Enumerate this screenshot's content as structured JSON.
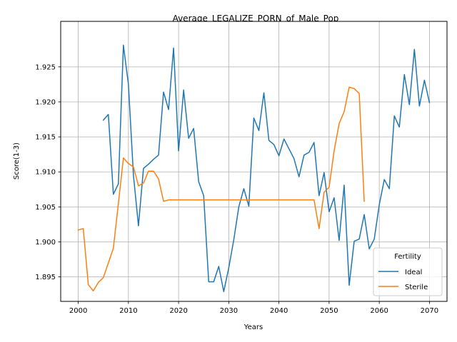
{
  "chart_data": {
    "type": "line",
    "title": "Average_LEGALIZE_PORN_of_Male_Pop",
    "xlabel": "Years",
    "ylabel": "Score(1-3)",
    "xlim": [
      1996.5,
      2073.5
    ],
    "ylim": [
      1.8915,
      1.9315
    ],
    "xticks": [
      2000,
      2010,
      2020,
      2030,
      2040,
      2050,
      2060,
      2070
    ],
    "xtick_labels": [
      "2000",
      "2010",
      "2020",
      "2030",
      "2040",
      "2050",
      "2060",
      "2070"
    ],
    "yticks": [
      1.895,
      1.9,
      1.905,
      1.91,
      1.915,
      1.92,
      1.925
    ],
    "ytick_labels": [
      "1.895",
      "1.900",
      "1.905",
      "1.910",
      "1.915",
      "1.920",
      "1.925"
    ],
    "grid": true,
    "legend": {
      "title": "Fertility",
      "position": "lower-right"
    },
    "series": [
      {
        "name": "Ideal",
        "color": "#1f77b4",
        "points": [
          [
            2005,
            1.9174
          ],
          [
            2006,
            1.9182
          ],
          [
            2007,
            1.9068
          ],
          [
            2008,
            1.9083
          ],
          [
            2009,
            1.9281
          ],
          [
            2010,
            1.9225
          ],
          [
            2011,
            1.9095
          ],
          [
            2012,
            1.9023
          ],
          [
            2013,
            1.9105
          ],
          [
            2014,
            1.9111
          ],
          [
            2015,
            1.9118
          ],
          [
            2016,
            1.9124
          ],
          [
            2017,
            1.9214
          ],
          [
            2018,
            1.9189
          ],
          [
            2019,
            1.9277
          ],
          [
            2020,
            1.913
          ],
          [
            2021,
            1.9217
          ],
          [
            2022,
            1.9148
          ],
          [
            2023,
            1.9162
          ],
          [
            2024,
            1.9086
          ],
          [
            2025,
            1.9066
          ],
          [
            2026,
            1.8943
          ],
          [
            2027,
            1.8943
          ],
          [
            2028,
            1.8965
          ],
          [
            2029,
            1.8929
          ],
          [
            2030,
            1.8963
          ],
          [
            2031,
            1.9003
          ],
          [
            2032,
            1.905
          ],
          [
            2033,
            1.9076
          ],
          [
            2034,
            1.9051
          ],
          [
            2035,
            1.9177
          ],
          [
            2036,
            1.9159
          ],
          [
            2037,
            1.9213
          ],
          [
            2038,
            1.9145
          ],
          [
            2039,
            1.9139
          ],
          [
            2040,
            1.9123
          ],
          [
            2041,
            1.9147
          ],
          [
            2042,
            1.9133
          ],
          [
            2043,
            1.9119
          ],
          [
            2044,
            1.9093
          ],
          [
            2045,
            1.9124
          ],
          [
            2046,
            1.9128
          ],
          [
            2047,
            1.9142
          ],
          [
            2048,
            1.9066
          ],
          [
            2049,
            1.9099
          ],
          [
            2050,
            1.9043
          ],
          [
            2051,
            1.9063
          ],
          [
            2052,
            1.9002
          ],
          [
            2053,
            1.9081
          ],
          [
            2054,
            1.8938
          ],
          [
            2055,
            1.9001
          ],
          [
            2056,
            1.9004
          ],
          [
            2057,
            1.9039
          ],
          [
            2058,
            1.899
          ],
          [
            2059,
            1.9004
          ],
          [
            2060,
            1.9053
          ],
          [
            2061,
            1.9089
          ],
          [
            2062,
            1.9076
          ],
          [
            2063,
            1.918
          ],
          [
            2064,
            1.9164
          ],
          [
            2065,
            1.9239
          ],
          [
            2066,
            1.9196
          ],
          [
            2067,
            1.9275
          ],
          [
            2068,
            1.9194
          ],
          [
            2069,
            1.9231
          ],
          [
            2070,
            1.9199
          ]
        ]
      },
      {
        "name": "Sterile",
        "color": "#ff7f0e",
        "points": [
          [
            2000,
            1.9017
          ],
          [
            2001,
            1.9019
          ],
          [
            2002,
            1.8939
          ],
          [
            2003,
            1.893
          ],
          [
            2004,
            1.8942
          ],
          [
            2005,
            1.8949
          ],
          [
            2006,
            1.897
          ],
          [
            2007,
            1.8991
          ],
          [
            2008,
            1.9055
          ],
          [
            2009,
            1.912
          ],
          [
            2010,
            1.9112
          ],
          [
            2011,
            1.9107
          ],
          [
            2012,
            1.908
          ],
          [
            2013,
            1.9084
          ],
          [
            2014,
            1.9101
          ],
          [
            2015,
            1.9101
          ],
          [
            2016,
            1.909
          ],
          [
            2017,
            1.9058
          ],
          [
            2018,
            1.906
          ],
          [
            2019,
            1.906
          ],
          [
            2020,
            1.906
          ],
          [
            2021,
            1.906
          ],
          [
            2022,
            1.906
          ],
          [
            2023,
            1.906
          ],
          [
            2024,
            1.906
          ],
          [
            2025,
            1.906
          ],
          [
            2026,
            1.906
          ],
          [
            2027,
            1.906
          ],
          [
            2028,
            1.906
          ],
          [
            2029,
            1.906
          ],
          [
            2030,
            1.906
          ],
          [
            2031,
            1.906
          ],
          [
            2032,
            1.906
          ],
          [
            2033,
            1.906
          ],
          [
            2034,
            1.906
          ],
          [
            2035,
            1.906
          ],
          [
            2036,
            1.906
          ],
          [
            2037,
            1.906
          ],
          [
            2038,
            1.906
          ],
          [
            2039,
            1.906
          ],
          [
            2040,
            1.906
          ],
          [
            2041,
            1.906
          ],
          [
            2042,
            1.906
          ],
          [
            2043,
            1.906
          ],
          [
            2044,
            1.906
          ],
          [
            2045,
            1.906
          ],
          [
            2046,
            1.906
          ],
          [
            2047,
            1.906
          ],
          [
            2048,
            1.9019
          ],
          [
            2049,
            1.9071
          ],
          [
            2050,
            1.9078
          ],
          [
            2051,
            1.913
          ],
          [
            2052,
            1.9169
          ],
          [
            2053,
            1.9186
          ],
          [
            2054,
            1.9221
          ],
          [
            2055,
            1.9219
          ],
          [
            2056,
            1.9212
          ],
          [
            2057,
            1.9058
          ]
        ]
      }
    ]
  }
}
